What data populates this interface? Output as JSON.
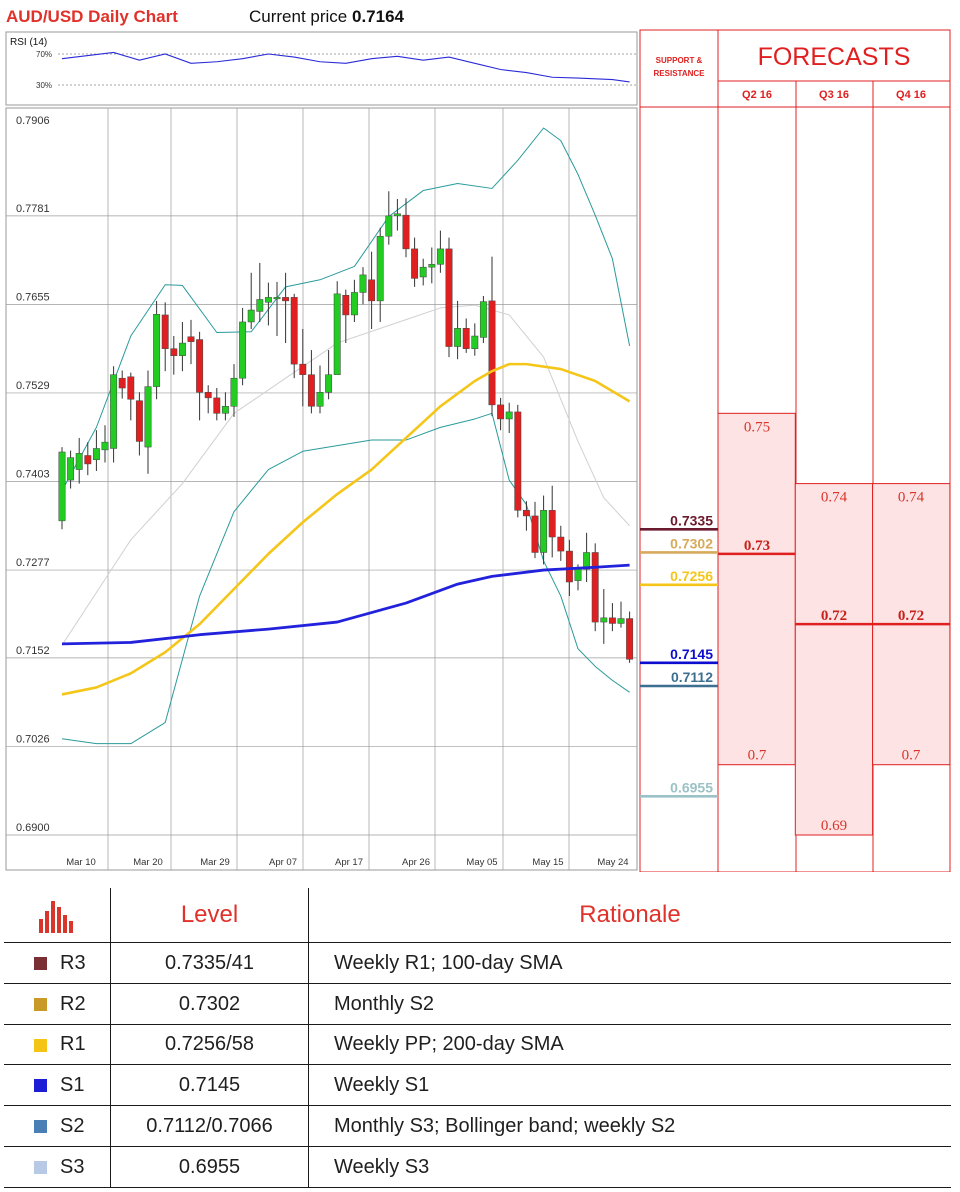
{
  "header": {
    "title": "AUD/USD Daily Chart",
    "current_price_label": "Current price",
    "current_price": "0.7164"
  },
  "rsi_panel": {
    "title": "RSI (14)",
    "levels": [
      "70%",
      "30%"
    ]
  },
  "levels_panel": {
    "title_line1": "SUPPORT &",
    "title_line2": "RESISTANCE"
  },
  "forecasts_panel": {
    "title": "FORECASTS",
    "quarters": [
      "Q2 16",
      "Q3 16",
      "Q4 16"
    ]
  },
  "chart_data": {
    "type": "candlestick",
    "title": "AUD/USD Daily Chart",
    "ylim": [
      0.69,
      0.7906
    ],
    "y_ticks": [
      "0.7906",
      "0.7781",
      "0.7655",
      "0.7529",
      "0.7403",
      "0.7277",
      "0.7152",
      "0.7026",
      "0.6900"
    ],
    "x_ticks": [
      "Mar 10",
      "Mar 20",
      "Mar 29",
      "Apr 07",
      "Apr 17",
      "Apr 26",
      "May 05",
      "May 15",
      "May 24"
    ],
    "candles": [
      [
        0.7347,
        0.7445,
        0.7452,
        0.7335
      ],
      [
        0.7405,
        0.7437,
        0.7447,
        0.7393
      ],
      [
        0.742,
        0.7443,
        0.7465,
        0.74
      ],
      [
        0.744,
        0.7428,
        0.7459,
        0.7412
      ],
      [
        0.7434,
        0.745,
        0.7476,
        0.7418
      ],
      [
        0.7448,
        0.7459,
        0.7483,
        0.743
      ],
      [
        0.745,
        0.7555,
        0.7567,
        0.743
      ],
      [
        0.755,
        0.7536,
        0.7561,
        0.7521
      ],
      [
        0.7552,
        0.752,
        0.7558,
        0.749
      ],
      [
        0.7518,
        0.746,
        0.753,
        0.744
      ],
      [
        0.7452,
        0.7538,
        0.7561,
        0.7414
      ],
      [
        0.7538,
        0.7641,
        0.766,
        0.752
      ],
      [
        0.764,
        0.7592,
        0.7658,
        0.756
      ],
      [
        0.7592,
        0.7582,
        0.761,
        0.7555
      ],
      [
        0.7582,
        0.76,
        0.763,
        0.756
      ],
      [
        0.7609,
        0.7602,
        0.7633,
        0.757
      ],
      [
        0.7605,
        0.753,
        0.7616,
        0.749
      ],
      [
        0.753,
        0.7522,
        0.754,
        0.75
      ],
      [
        0.7522,
        0.75,
        0.7536,
        0.749
      ],
      [
        0.75,
        0.751,
        0.753,
        0.749
      ],
      [
        0.751,
        0.755,
        0.757,
        0.7495
      ],
      [
        0.755,
        0.763,
        0.765,
        0.754
      ],
      [
        0.763,
        0.7647,
        0.77,
        0.762
      ],
      [
        0.7645,
        0.7662,
        0.7714,
        0.763
      ],
      [
        0.7658,
        0.7665,
        0.7686,
        0.7625
      ],
      [
        0.7665,
        0.7665,
        0.7687,
        0.761
      ],
      [
        0.7665,
        0.766,
        0.77,
        0.76
      ],
      [
        0.7665,
        0.757,
        0.767,
        0.755
      ],
      [
        0.757,
        0.7555,
        0.762,
        0.751
      ],
      [
        0.7555,
        0.751,
        0.759,
        0.75
      ],
      [
        0.751,
        0.753,
        0.7568,
        0.75
      ],
      [
        0.753,
        0.7555,
        0.759,
        0.752
      ],
      [
        0.7555,
        0.767,
        0.7688,
        0.756
      ],
      [
        0.7668,
        0.764,
        0.7676,
        0.76
      ],
      [
        0.764,
        0.7672,
        0.769,
        0.763
      ],
      [
        0.7672,
        0.7697,
        0.7708,
        0.7655
      ],
      [
        0.769,
        0.766,
        0.773,
        0.762
      ],
      [
        0.766,
        0.7752,
        0.7764,
        0.763
      ],
      [
        0.7752,
        0.7781,
        0.7816,
        0.774
      ],
      [
        0.7781,
        0.7784,
        0.7805,
        0.776
      ],
      [
        0.7782,
        0.7734,
        0.7806,
        0.7722
      ],
      [
        0.7734,
        0.7692,
        0.775,
        0.768
      ],
      [
        0.7694,
        0.7708,
        0.772,
        0.7682
      ],
      [
        0.7708,
        0.7712,
        0.7736,
        0.7685
      ],
      [
        0.7712,
        0.7734,
        0.776,
        0.77
      ],
      [
        0.7734,
        0.7595,
        0.775,
        0.758
      ],
      [
        0.7595,
        0.7621,
        0.766,
        0.7577
      ],
      [
        0.7621,
        0.7592,
        0.7635,
        0.7586
      ],
      [
        0.7592,
        0.761,
        0.7628,
        0.7582
      ],
      [
        0.7608,
        0.7659,
        0.7667,
        0.76
      ],
      [
        0.766,
        0.7512,
        0.7723,
        0.7496
      ],
      [
        0.7512,
        0.7492,
        0.7522,
        0.7476
      ],
      [
        0.7492,
        0.7502,
        0.7515,
        0.7472
      ],
      [
        0.7502,
        0.7362,
        0.7512,
        0.7352
      ],
      [
        0.7362,
        0.7354,
        0.7375,
        0.7333
      ],
      [
        0.7354,
        0.7302,
        0.7374,
        0.7294
      ],
      [
        0.7302,
        0.7362,
        0.7383,
        0.7285
      ],
      [
        0.7362,
        0.7324,
        0.7397,
        0.7295
      ],
      [
        0.7324,
        0.7304,
        0.734,
        0.729
      ],
      [
        0.7304,
        0.726,
        0.732,
        0.724
      ],
      [
        0.7262,
        0.7278,
        0.7285,
        0.7248
      ],
      [
        0.7278,
        0.7302,
        0.733,
        0.726
      ],
      [
        0.7302,
        0.7203,
        0.7315,
        0.719
      ],
      [
        0.7203,
        0.7209,
        0.725,
        0.7172
      ],
      [
        0.7209,
        0.7201,
        0.723,
        0.719
      ],
      [
        0.7201,
        0.7208,
        0.7232,
        0.7195
      ],
      [
        0.7208,
        0.715,
        0.7218,
        0.7145
      ]
    ],
    "sma_100": [
      [
        0,
        0.71
      ],
      [
        4,
        0.711
      ],
      [
        8,
        0.713
      ],
      [
        12,
        0.716
      ],
      [
        16,
        0.72
      ],
      [
        20,
        0.725
      ],
      [
        24,
        0.73
      ],
      [
        28,
        0.7345
      ],
      [
        32,
        0.7385
      ],
      [
        36,
        0.742
      ],
      [
        40,
        0.7465
      ],
      [
        44,
        0.751
      ],
      [
        48,
        0.7546
      ],
      [
        50,
        0.756
      ],
      [
        52,
        0.757
      ],
      [
        54,
        0.757
      ],
      [
        58,
        0.7563
      ],
      [
        62,
        0.7546
      ],
      [
        66,
        0.7517
      ]
    ],
    "sma_200": [
      [
        0,
        0.7172
      ],
      [
        8,
        0.7174
      ],
      [
        16,
        0.7185
      ],
      [
        24,
        0.7193
      ],
      [
        32,
        0.7203
      ],
      [
        40,
        0.723
      ],
      [
        46,
        0.7257
      ],
      [
        50,
        0.7268
      ],
      [
        56,
        0.7277
      ],
      [
        62,
        0.7281
      ],
      [
        66,
        0.7284
      ]
    ],
    "bollinger_upper": [
      [
        0,
        0.739
      ],
      [
        4,
        0.748
      ],
      [
        8,
        0.761
      ],
      [
        12,
        0.7683
      ],
      [
        14,
        0.7682
      ],
      [
        18,
        0.7615
      ],
      [
        22,
        0.7616
      ],
      [
        26,
        0.768
      ],
      [
        30,
        0.769
      ],
      [
        34,
        0.7709
      ],
      [
        38,
        0.778
      ],
      [
        42,
        0.7817
      ],
      [
        46,
        0.7827
      ],
      [
        50,
        0.782
      ],
      [
        53,
        0.786
      ],
      [
        56,
        0.7906
      ],
      [
        58,
        0.7888
      ],
      [
        60,
        0.784
      ],
      [
        62,
        0.7782
      ],
      [
        64,
        0.772
      ],
      [
        66,
        0.7596
      ]
    ],
    "bollinger_lower": [
      [
        0,
        0.7037
      ],
      [
        4,
        0.703
      ],
      [
        8,
        0.703
      ],
      [
        12,
        0.706
      ],
      [
        16,
        0.724
      ],
      [
        20,
        0.736
      ],
      [
        24,
        0.742
      ],
      [
        28,
        0.7446
      ],
      [
        32,
        0.7454
      ],
      [
        36,
        0.7462
      ],
      [
        40,
        0.7462
      ],
      [
        44,
        0.748
      ],
      [
        48,
        0.7492
      ],
      [
        50,
        0.75
      ],
      [
        52,
        0.7405
      ],
      [
        54,
        0.737
      ],
      [
        56,
        0.729
      ],
      [
        58,
        0.724
      ],
      [
        60,
        0.7165
      ],
      [
        62,
        0.714
      ],
      [
        64,
        0.712
      ],
      [
        66,
        0.7103
      ]
    ],
    "bollinger_mid": [
      [
        0,
        0.717
      ],
      [
        8,
        0.732
      ],
      [
        14,
        0.74
      ],
      [
        20,
        0.75
      ],
      [
        26,
        0.755
      ],
      [
        32,
        0.76
      ],
      [
        38,
        0.7625
      ],
      [
        44,
        0.765
      ],
      [
        48,
        0.7654
      ],
      [
        52,
        0.764
      ],
      [
        56,
        0.758
      ],
      [
        60,
        0.746
      ],
      [
        63,
        0.738
      ],
      [
        66,
        0.734
      ]
    ],
    "rsi": [
      [
        0,
        64
      ],
      [
        3,
        68
      ],
      [
        6,
        72
      ],
      [
        9,
        62
      ],
      [
        12,
        70
      ],
      [
        15,
        58
      ],
      [
        18,
        60
      ],
      [
        21,
        64
      ],
      [
        24,
        70
      ],
      [
        27,
        66
      ],
      [
        30,
        60
      ],
      [
        33,
        58
      ],
      [
        36,
        64
      ],
      [
        39,
        67
      ],
      [
        42,
        62
      ],
      [
        45,
        66
      ],
      [
        48,
        58
      ],
      [
        51,
        50
      ],
      [
        54,
        46
      ],
      [
        57,
        40
      ],
      [
        60,
        39
      ],
      [
        62,
        38
      ],
      [
        64,
        37
      ],
      [
        66,
        34
      ]
    ],
    "support_resistance": [
      {
        "label": "0.7335",
        "color": "#6b1a2d"
      },
      {
        "label": "0.7302",
        "color": "#d7aa5c"
      },
      {
        "label": "0.7256",
        "color": "#f5c61a"
      },
      {
        "label": "0.7145",
        "color": "#0d0dcf"
      },
      {
        "label": "0.7112",
        "color": "#3c6f90"
      },
      {
        "label": "0.6955",
        "color": "#9bc2c7"
      }
    ],
    "forecasts": [
      {
        "quarter": "Q2 16",
        "high": "0.75",
        "median": "0.73",
        "low": "0.7"
      },
      {
        "quarter": "Q3 16",
        "high": "0.74",
        "median": "0.72",
        "low": "0.69"
      },
      {
        "quarter": "Q4 16",
        "high": "0.74",
        "median": "0.72",
        "low": "0.7"
      }
    ],
    "colors": {
      "up": "#22cc22",
      "down": "#e02020",
      "sma100": "#f5c61a",
      "sma200": "#2222dd",
      "bollinger": "#2a9a9a"
    }
  },
  "levels_table": {
    "headers": {
      "level": "Level",
      "rationale": "Rationale"
    },
    "icon": "bar-chart-icon",
    "rows": [
      {
        "name": "R3",
        "color": "#7a2f35",
        "level": "0.7335/41",
        "rationale": "Weekly R1; 100-day SMA"
      },
      {
        "name": "R2",
        "color": "#c99a26",
        "level": "0.7302",
        "rationale": "Monthly S2"
      },
      {
        "name": "R1",
        "color": "#f4c515",
        "level": "0.7256/58",
        "rationale": "Weekly PP; 200-day SMA"
      },
      {
        "name": "S1",
        "color": "#1d1dd6",
        "level": "0.7145",
        "rationale": "Weekly S1"
      },
      {
        "name": "S2",
        "color": "#4a7fb5",
        "level": "0.7112/0.7066",
        "rationale": "Monthly S3; Bollinger band; weekly S2"
      },
      {
        "name": "S3",
        "color": "#b7c9e4",
        "level": "0.6955",
        "rationale": "Weekly S3"
      }
    ]
  }
}
